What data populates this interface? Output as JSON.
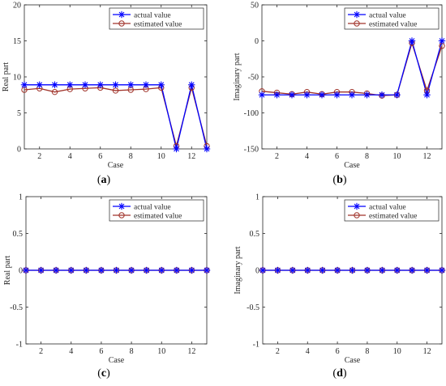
{
  "chart_data": [
    {
      "type": "line",
      "panel_label": "(a)",
      "xlabel": "Case",
      "ylabel": "Real part",
      "xlim": [
        1,
        13
      ],
      "ylim": [
        0,
        20
      ],
      "xticks": [
        2,
        4,
        6,
        8,
        10,
        12
      ],
      "yticks": [
        0,
        5,
        10,
        15,
        20
      ],
      "grid": false,
      "legend_position": "top-right",
      "x": [
        1,
        2,
        3,
        4,
        5,
        6,
        7,
        8,
        9,
        10,
        11,
        12,
        13
      ],
      "series": [
        {
          "name": "actual value",
          "marker": "star",
          "color": "#0000ff",
          "values": [
            8.9,
            8.9,
            8.9,
            8.9,
            8.9,
            8.9,
            8.9,
            8.9,
            8.9,
            8.9,
            0.0,
            8.9,
            0.0
          ]
        },
        {
          "name": "estimated value",
          "marker": "circle",
          "color": "#a0332a",
          "values": [
            8.2,
            8.4,
            7.9,
            8.3,
            8.4,
            8.5,
            8.1,
            8.2,
            8.3,
            8.5,
            0.4,
            8.5,
            0.4
          ]
        }
      ]
    },
    {
      "type": "line",
      "panel_label": "(b)",
      "xlabel": "Case",
      "ylabel": "Imaginary part",
      "xlim": [
        1,
        13
      ],
      "ylim": [
        -150,
        50
      ],
      "xticks": [
        2,
        4,
        6,
        8,
        10,
        12
      ],
      "yticks": [
        -150,
        -100,
        -50,
        0,
        50
      ],
      "grid": false,
      "legend_position": "top-right",
      "x": [
        1,
        2,
        3,
        4,
        5,
        6,
        7,
        8,
        9,
        10,
        11,
        12,
        13
      ],
      "series": [
        {
          "name": "actual value",
          "marker": "star",
          "color": "#0000ff",
          "values": [
            -75,
            -75,
            -75,
            -75,
            -75,
            -75,
            -75,
            -75,
            -75,
            -75,
            0,
            -75,
            0
          ]
        },
        {
          "name": "estimated value",
          "marker": "circle",
          "color": "#a0332a",
          "values": [
            -70,
            -72,
            -74,
            -71,
            -74,
            -71,
            -71,
            -73,
            -76,
            -75,
            -3,
            -69,
            -7
          ]
        }
      ]
    },
    {
      "type": "line",
      "panel_label": "(c)",
      "xlabel": "Case",
      "ylabel": "Real part",
      "xlim": [
        1,
        13
      ],
      "ylim": [
        -1,
        1
      ],
      "xticks": [
        2,
        4,
        6,
        8,
        10,
        12
      ],
      "yticks": [
        -1,
        -0.5,
        0,
        0.5,
        1
      ],
      "grid": false,
      "legend_position": "top-right",
      "x": [
        1,
        2,
        3,
        4,
        5,
        6,
        7,
        8,
        9,
        10,
        11,
        12,
        13
      ],
      "series": [
        {
          "name": "actual value",
          "marker": "star",
          "color": "#0000ff",
          "values": [
            0,
            0,
            0,
            0,
            0,
            0,
            0,
            0,
            0,
            0,
            0,
            0,
            0
          ]
        },
        {
          "name": "estimated value",
          "marker": "circle",
          "color": "#a0332a",
          "values": [
            0,
            0,
            0,
            0,
            0,
            0,
            0,
            0,
            0,
            0,
            0,
            0,
            0
          ]
        }
      ]
    },
    {
      "type": "line",
      "panel_label": "(d)",
      "xlabel": "Case",
      "ylabel": "Imaginary part",
      "xlim": [
        1,
        13
      ],
      "ylim": [
        -1,
        1
      ],
      "xticks": [
        2,
        4,
        6,
        8,
        10,
        12
      ],
      "yticks": [
        -1,
        -0.5,
        0,
        0.5,
        1
      ],
      "grid": false,
      "legend_position": "top-right",
      "x": [
        1,
        2,
        3,
        4,
        5,
        6,
        7,
        8,
        9,
        10,
        11,
        12,
        13
      ],
      "series": [
        {
          "name": "actual value",
          "marker": "star",
          "color": "#0000ff",
          "values": [
            0,
            0,
            0,
            0,
            0,
            0,
            0,
            0,
            0,
            0,
            0,
            0,
            0
          ]
        },
        {
          "name": "estimated value",
          "marker": "circle",
          "color": "#a0332a",
          "values": [
            0,
            0,
            0,
            0,
            0,
            0,
            0,
            0,
            0,
            0,
            0,
            0,
            0
          ]
        }
      ]
    }
  ]
}
